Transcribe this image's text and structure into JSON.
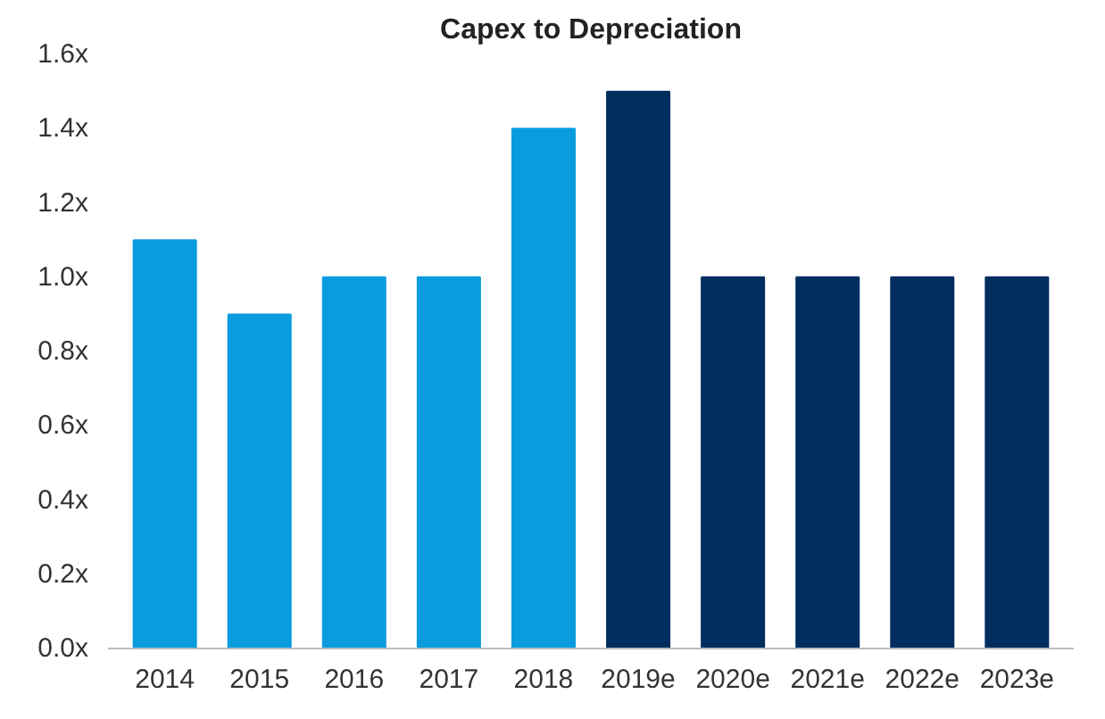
{
  "chart_data": {
    "type": "bar",
    "title": "Capex to Depreciation",
    "categories": [
      "2014",
      "2015",
      "2016",
      "2017",
      "2018",
      "2019e",
      "2020e",
      "2021e",
      "2022e",
      "2023e"
    ],
    "values": [
      1.1,
      0.9,
      1.0,
      1.0,
      1.4,
      1.5,
      1.0,
      1.0,
      1.0,
      1.0
    ],
    "colors": [
      "#0a9cdf",
      "#0a9cdf",
      "#0a9cdf",
      "#0a9cdf",
      "#0a9cdf",
      "#002f5f",
      "#002f5f",
      "#002f5f",
      "#002f5f",
      "#002f5f"
    ],
    "ylim": [
      0,
      1.6
    ],
    "yticks": [
      {
        "value": 0,
        "label": "0.0x"
      },
      {
        "value": 0.2,
        "label": "0.2x"
      },
      {
        "value": 0.4,
        "label": "0.4x"
      },
      {
        "value": 0.6,
        "label": "0.6x"
      },
      {
        "value": 0.8,
        "label": "0.8x"
      },
      {
        "value": 1.0,
        "label": "1.0x"
      },
      {
        "value": 1.2,
        "label": "1.2x"
      },
      {
        "value": 1.4,
        "label": "1.4x"
      },
      {
        "value": 1.6,
        "label": "1.6x"
      }
    ],
    "grid": false
  }
}
